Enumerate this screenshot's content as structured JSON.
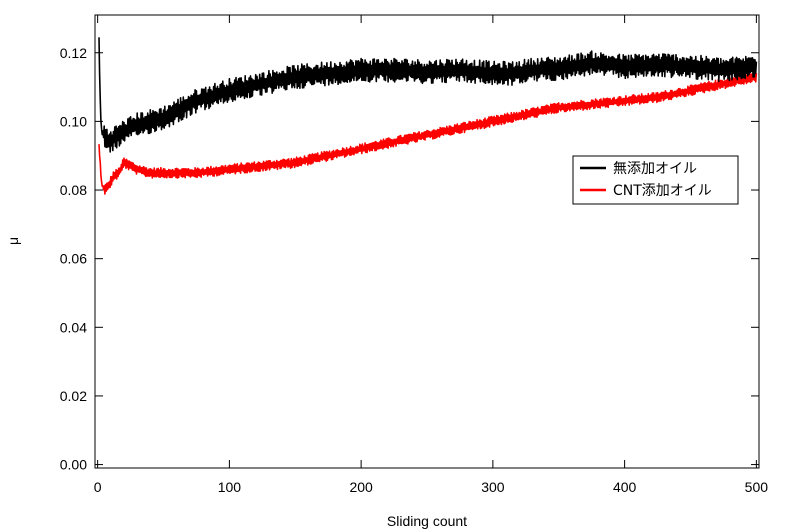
{
  "chart_data": {
    "type": "line",
    "title": "",
    "xlabel": "Sliding count",
    "ylabel": "μ",
    "xlim": [
      -2,
      502
    ],
    "ylim": [
      -0.001,
      0.131
    ],
    "xticks": [
      0,
      100,
      200,
      300,
      400,
      500
    ],
    "xtick_labels": [
      "0",
      "100",
      "200",
      "300",
      "400",
      "500"
    ],
    "yticks": [
      0.0,
      0.02,
      0.04,
      0.06,
      0.08,
      0.1,
      0.12
    ],
    "ytick_labels": [
      "0.00",
      "0.02",
      "0.04",
      "0.06",
      "0.08",
      "0.10",
      "0.12"
    ],
    "grid": false,
    "legend_position": "right, upper-middle",
    "series": [
      {
        "name": "無添加オイル",
        "color": "#000000",
        "noise": 0.0035,
        "x": [
          1,
          2,
          3,
          5,
          8,
          12,
          20,
          30,
          50,
          75,
          100,
          125,
          150,
          175,
          200,
          225,
          250,
          275,
          300,
          315,
          330,
          350,
          375,
          400,
          425,
          450,
          475,
          500
        ],
        "y": [
          0.124,
          0.105,
          0.097,
          0.096,
          0.094,
          0.095,
          0.097,
          0.099,
          0.101,
          0.106,
          0.109,
          0.111,
          0.113,
          0.114,
          0.115,
          0.115,
          0.1145,
          0.115,
          0.114,
          0.114,
          0.115,
          0.1155,
          0.117,
          0.116,
          0.1165,
          0.116,
          0.115,
          0.116
        ]
      },
      {
        "name": "CNT添加オイル",
        "color": "#ff0000",
        "noise": 0.0015,
        "x": [
          1,
          3,
          5,
          8,
          12,
          16,
          20,
          25,
          30,
          40,
          50,
          75,
          100,
          125,
          150,
          175,
          200,
          225,
          250,
          275,
          300,
          325,
          350,
          375,
          400,
          425,
          450,
          475,
          500
        ],
        "y": [
          0.093,
          0.082,
          0.08,
          0.081,
          0.084,
          0.085,
          0.088,
          0.087,
          0.086,
          0.085,
          0.085,
          0.085,
          0.086,
          0.087,
          0.088,
          0.09,
          0.092,
          0.094,
          0.096,
          0.098,
          0.1,
          0.102,
          0.104,
          0.105,
          0.106,
          0.107,
          0.109,
          0.111,
          0.113
        ]
      }
    ]
  }
}
